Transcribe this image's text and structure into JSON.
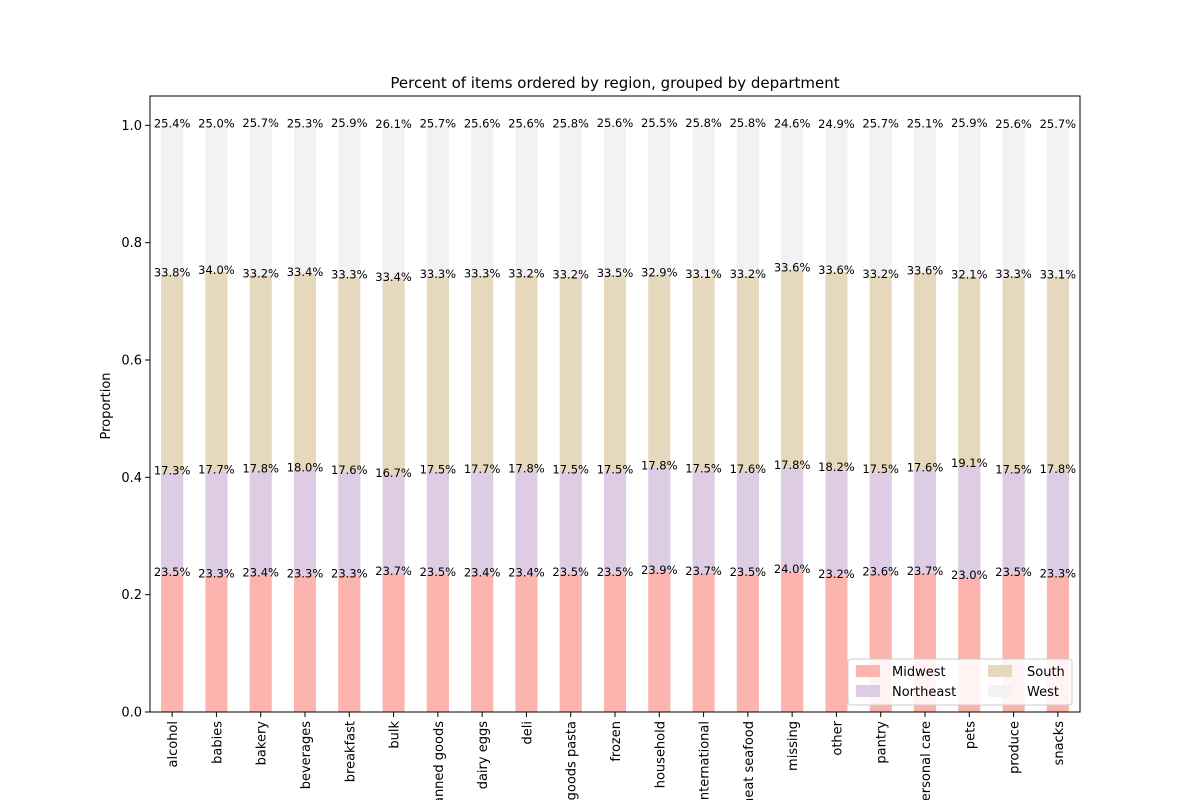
{
  "chart_data": {
    "type": "bar",
    "stacked": true,
    "title": "Percent of items ordered by region, grouped by department",
    "xlabel": "",
    "ylabel": "Proportion",
    "ylim": [
      0.0,
      1.05
    ],
    "yticks": [
      "0.0",
      "0.2",
      "0.4",
      "0.6",
      "0.8",
      "1.0"
    ],
    "categories": [
      "alcohol",
      "babies",
      "bakery",
      "beverages",
      "breakfast",
      "bulk",
      "canned goods",
      "dairy eggs",
      "deli",
      "dry goods pasta",
      "frozen",
      "household",
      "international",
      "meat seafood",
      "missing",
      "other",
      "pantry",
      "personal care",
      "pets",
      "produce",
      "snacks"
    ],
    "series": [
      {
        "name": "Midwest",
        "color": "#fbb4ae",
        "values": [
          0.235,
          0.233,
          0.234,
          0.233,
          0.233,
          0.237,
          0.235,
          0.234,
          0.234,
          0.235,
          0.235,
          0.239,
          0.237,
          0.235,
          0.24,
          0.232,
          0.236,
          0.237,
          0.23,
          0.235,
          0.233
        ],
        "labels": [
          "23.5%",
          "23.3%",
          "23.4%",
          "23.3%",
          "23.3%",
          "23.7%",
          "23.5%",
          "23.4%",
          "23.4%",
          "23.5%",
          "23.5%",
          "23.9%",
          "23.7%",
          "23.5%",
          "24.0%",
          "23.2%",
          "23.6%",
          "23.7%",
          "23.0%",
          "23.5%",
          "23.3%"
        ]
      },
      {
        "name": "Northeast",
        "color": "#decbe4",
        "values": [
          0.173,
          0.177,
          0.178,
          0.18,
          0.176,
          0.167,
          0.175,
          0.177,
          0.178,
          0.175,
          0.175,
          0.178,
          0.175,
          0.176,
          0.178,
          0.182,
          0.175,
          0.176,
          0.191,
          0.175,
          0.178
        ],
        "labels": [
          "17.3%",
          "17.7%",
          "17.8%",
          "18.0%",
          "17.6%",
          "16.7%",
          "17.5%",
          "17.7%",
          "17.8%",
          "17.5%",
          "17.5%",
          "17.8%",
          "17.5%",
          "17.6%",
          "17.8%",
          "18.2%",
          "17.5%",
          "17.6%",
          "19.1%",
          "17.5%",
          "17.8%"
        ]
      },
      {
        "name": "South",
        "color": "#e5d8bd",
        "values": [
          0.338,
          0.34,
          0.332,
          0.334,
          0.333,
          0.334,
          0.333,
          0.333,
          0.332,
          0.332,
          0.335,
          0.329,
          0.331,
          0.332,
          0.336,
          0.336,
          0.332,
          0.336,
          0.321,
          0.333,
          0.331
        ],
        "labels": [
          "33.8%",
          "34.0%",
          "33.2%",
          "33.4%",
          "33.3%",
          "33.4%",
          "33.3%",
          "33.3%",
          "33.2%",
          "33.2%",
          "33.5%",
          "32.9%",
          "33.1%",
          "33.2%",
          "33.6%",
          "33.6%",
          "33.2%",
          "33.6%",
          "32.1%",
          "33.3%",
          "33.1%"
        ]
      },
      {
        "name": "West",
        "color": "#f2f2f2",
        "values": [
          0.254,
          0.25,
          0.257,
          0.253,
          0.259,
          0.261,
          0.257,
          0.256,
          0.256,
          0.258,
          0.256,
          0.255,
          0.258,
          0.258,
          0.246,
          0.249,
          0.257,
          0.251,
          0.259,
          0.256,
          0.257
        ],
        "labels": [
          "25.4%",
          "25.0%",
          "25.7%",
          "25.3%",
          "25.9%",
          "26.1%",
          "25.7%",
          "25.6%",
          "25.6%",
          "25.8%",
          "25.6%",
          "25.5%",
          "25.8%",
          "25.8%",
          "24.6%",
          "24.9%",
          "25.7%",
          "25.1%",
          "25.9%",
          "25.6%",
          "25.7%"
        ]
      }
    ],
    "legend": {
      "position": "lower-right",
      "columns": 2
    },
    "grid": false
  }
}
